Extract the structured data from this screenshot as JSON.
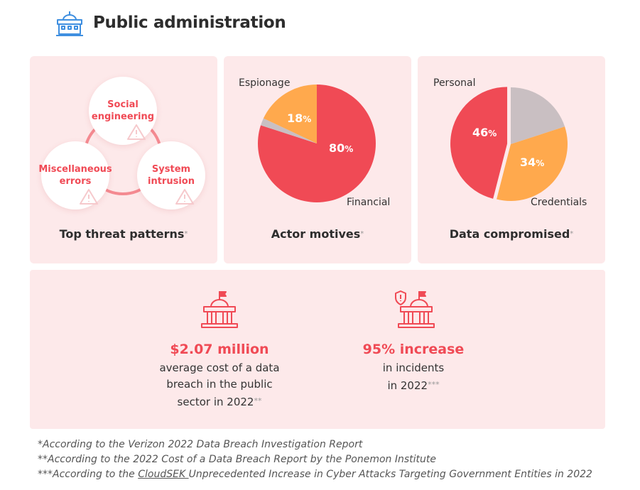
{
  "header": {
    "title": "Public administration",
    "icon": "government-building-icon",
    "icon_color": "#3f8fe0"
  },
  "colors": {
    "accent": "#f04a55",
    "orange": "#ffa94d",
    "grey": "#c9bfc2",
    "card_bg": "#fde9ea"
  },
  "threats": {
    "bubbles": [
      {
        "label": "Social engineering"
      },
      {
        "label": "Miscellaneous errors"
      },
      {
        "label": "System intrusion"
      }
    ],
    "caption": "Top threat patterns",
    "caption_mark": "*"
  },
  "motives": {
    "caption": "Actor motives",
    "caption_mark": "*",
    "slices": [
      {
        "name": "Financial",
        "value": 80,
        "label": "80",
        "color": "#f04a55"
      },
      {
        "name": "Espionage",
        "value": 18,
        "label": "18",
        "color": "#ffa94d"
      },
      {
        "name": "",
        "value": 2,
        "color": "#c9bfc2"
      }
    ]
  },
  "data_compromised": {
    "caption": "Data compromised",
    "caption_mark": "*",
    "slices": [
      {
        "name": "Personal",
        "value": 46,
        "label": "46",
        "color": "#f04a55"
      },
      {
        "name": "Credentials",
        "value": 34,
        "label": "34",
        "color": "#ffa94d"
      },
      {
        "name": "",
        "value": 20,
        "color": "#c9bfc2"
      }
    ]
  },
  "stats": [
    {
      "icon": "government-building-flag-icon",
      "value": "$2.07 million",
      "lines": [
        "average cost of a data",
        "breach in the public",
        "sector in 2022"
      ],
      "mark": "**"
    },
    {
      "icon": "government-building-alert-icon",
      "value": "95% increase",
      "lines": [
        "in incidents",
        "in 2022"
      ],
      "mark": "***"
    }
  ],
  "footnotes": {
    "f1": "*According to the Verizon 2022 Data Breach Investigation Report",
    "f2": "**According to the 2022 Cost of a Data Breach Report by the Ponemon Institute",
    "f3_prefix": "***According to the ",
    "f3_link": "CloudSEK ",
    "f3_suffix": "Unprecedented Increase in Cyber Attacks Targeting Government Entities in 2022"
  },
  "percent_sign": "%"
}
